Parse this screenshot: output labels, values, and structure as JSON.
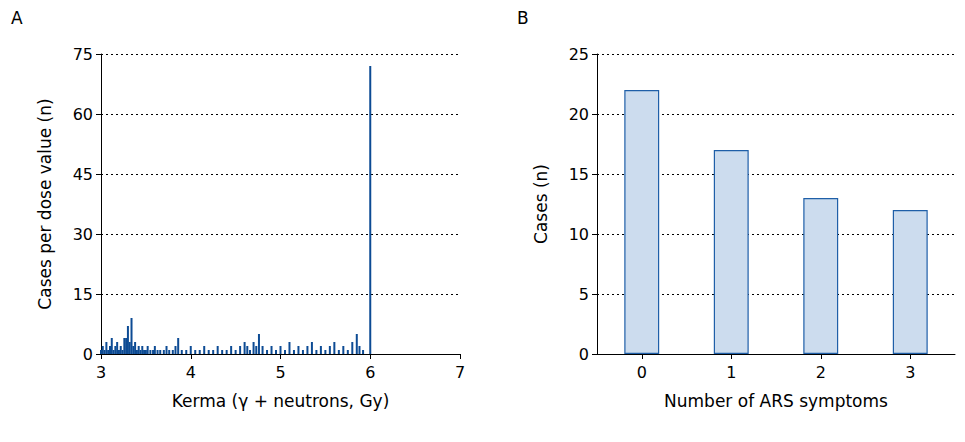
{
  "chart_data": [
    {
      "type": "bar",
      "title": "A",
      "x_label": "Kerma (γ + neutrons, Gy)",
      "y_label": "Cases per dose value (n)",
      "x": [
        3.0,
        3.02,
        3.04,
        3.06,
        3.08,
        3.1,
        3.12,
        3.14,
        3.16,
        3.18,
        3.2,
        3.22,
        3.24,
        3.26,
        3.28,
        3.3,
        3.32,
        3.34,
        3.36,
        3.38,
        3.4,
        3.42,
        3.44,
        3.46,
        3.48,
        3.5,
        3.52,
        3.55,
        3.58,
        3.6,
        3.63,
        3.66,
        3.7,
        3.73,
        3.76,
        3.8,
        3.83,
        3.86,
        3.9,
        3.95,
        4.0,
        4.05,
        4.1,
        4.15,
        4.2,
        4.25,
        4.3,
        4.35,
        4.4,
        4.45,
        4.5,
        4.55,
        4.6,
        4.63,
        4.66,
        4.7,
        4.73,
        4.76,
        4.8,
        4.85,
        4.9,
        4.95,
        5.0,
        5.05,
        5.1,
        5.15,
        5.2,
        5.25,
        5.3,
        5.35,
        5.4,
        5.45,
        5.5,
        5.55,
        5.6,
        5.65,
        5.7,
        5.75,
        5.8,
        5.85,
        5.88,
        5.92,
        6.0
      ],
      "values": [
        1,
        2,
        1,
        3,
        1,
        2,
        4,
        1,
        2,
        3,
        1,
        2,
        1,
        4,
        4,
        7,
        3,
        9,
        2,
        3,
        1,
        2,
        1,
        2,
        1,
        1,
        2,
        1,
        1,
        2,
        1,
        1,
        1,
        2,
        1,
        1,
        2,
        4,
        1,
        1,
        2,
        1,
        1,
        2,
        1,
        1,
        2,
        1,
        1,
        2,
        1,
        2,
        3,
        2,
        1,
        3,
        2,
        5,
        2,
        1,
        2,
        1,
        2,
        1,
        3,
        1,
        2,
        1,
        2,
        3,
        1,
        2,
        1,
        2,
        3,
        1,
        2,
        1,
        3,
        5,
        2,
        1,
        72
      ],
      "color": "#0d4b94",
      "xlim": [
        3,
        7
      ],
      "xticks": [
        3,
        4,
        5,
        6,
        7
      ],
      "ylim": [
        0,
        75
      ],
      "yticks": [
        0,
        15,
        30,
        45,
        60,
        75
      ],
      "grid": true
    },
    {
      "type": "bar",
      "title": "B",
      "x_label": "Number of ARS symptoms",
      "y_label": "Cases (n)",
      "categories": [
        "0",
        "1",
        "2",
        "3"
      ],
      "values": [
        22,
        17,
        13,
        12
      ],
      "color": "#ccdcee",
      "ylim": [
        0,
        25
      ],
      "yticks": [
        0,
        5,
        10,
        15,
        20,
        25
      ],
      "grid": true
    }
  ]
}
